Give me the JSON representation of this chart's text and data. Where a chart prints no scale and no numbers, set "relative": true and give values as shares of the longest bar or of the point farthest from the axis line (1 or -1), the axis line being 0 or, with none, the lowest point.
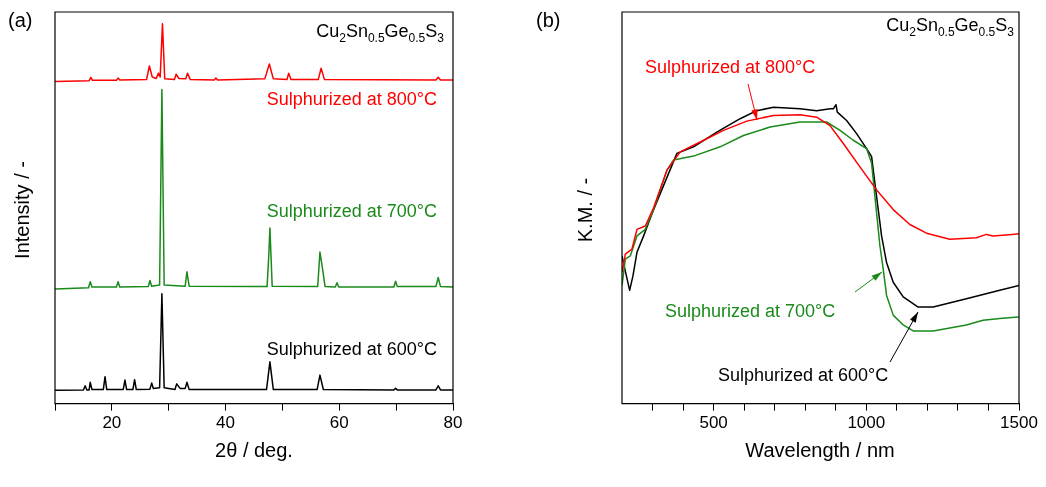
{
  "chart_data": [
    {
      "type": "line",
      "relative": true,
      "xlabel": "2θ / deg.",
      "ylabel": "Intensity / -",
      "xlim": [
        10,
        80
      ],
      "xticks": [
        {
          "value": 10,
          "label": null
        },
        20,
        {
          "value": 30,
          "label": null
        },
        40,
        {
          "value": 50,
          "label": null
        },
        60,
        {
          "value": 70,
          "label": null
        },
        80
      ],
      "tick_labels": "x",
      "grid": false,
      "legend": false,
      "annotations": [
        "(a)",
        "Cu$_{2}$Sn$_{0.5}$Ge$_{0.5}$S$_{3}$"
      ],
      "series": [
        {
          "name": "Sulphurized at 800°C",
          "color": "#ff0000",
          "x": [
            10,
            16.0,
            16.3,
            16.6,
            20.8,
            21.1,
            21.4,
            26.1,
            26.6,
            27.1,
            27.8,
            28.2,
            28.5,
            28.9,
            29.3,
            31.0,
            31.3,
            31.8,
            33.0,
            33.3,
            33.8,
            38.0,
            38.3,
            38.6,
            46.9,
            47.7,
            48.4,
            50.8,
            51.1,
            51.5,
            56.3,
            56.8,
            57.4,
            77.0,
            77.4,
            77.8,
            80
          ],
          "values": [
            0.848,
            0.85,
            0.859,
            0.851,
            0.851,
            0.857,
            0.852,
            0.853,
            0.889,
            0.86,
            0.856,
            0.87,
            0.86,
            1.0,
            0.855,
            0.853,
            0.867,
            0.856,
            0.855,
            0.87,
            0.853,
            0.852,
            0.857,
            0.852,
            0.855,
            0.894,
            0.855,
            0.853,
            0.87,
            0.853,
            0.853,
            0.883,
            0.853,
            0.852,
            0.859,
            0.852,
            0.852
          ]
        },
        {
          "name": "Sulphurized at 700°C",
          "color": "#1a8a1a",
          "x": [
            10,
            15.9,
            16.2,
            16.5,
            20.8,
            21.1,
            21.4,
            26.4,
            26.7,
            27.0,
            28.4,
            28.8,
            29.2,
            32.9,
            33.2,
            33.6,
            47.3,
            47.6,
            47.8,
            48.2,
            56.2,
            56.6,
            57.1,
            57.5,
            59.3,
            59.6,
            59.9,
            69.6,
            69.9,
            70.2,
            77.0,
            77.4,
            77.8,
            80
          ],
          "values": [
            0.302,
            0.305,
            0.321,
            0.307,
            0.307,
            0.321,
            0.307,
            0.308,
            0.324,
            0.309,
            0.312,
            0.827,
            0.312,
            0.309,
            0.347,
            0.309,
            0.308,
            0.39,
            0.462,
            0.309,
            0.308,
            0.399,
            0.35,
            0.308,
            0.307,
            0.318,
            0.307,
            0.307,
            0.322,
            0.308,
            0.308,
            0.332,
            0.308,
            0.307
          ]
        },
        {
          "name": "Sulphurized at 600°C",
          "color": "#000000",
          "x": [
            10,
            15.0,
            15.3,
            15.6,
            16.0,
            16.2,
            16.5,
            18.5,
            18.8,
            19.1,
            22.0,
            22.3,
            22.6,
            23.7,
            24.0,
            24.3,
            26.7,
            27.0,
            27.3,
            28.4,
            28.8,
            29.2,
            31.1,
            31.4,
            32.0,
            32.9,
            33.2,
            33.6,
            47.2,
            47.8,
            48.4,
            56.1,
            56.6,
            57.2,
            69.6,
            69.9,
            70.2,
            77.0,
            77.4,
            77.8,
            80
          ],
          "values": [
            0.035,
            0.036,
            0.047,
            0.036,
            0.036,
            0.056,
            0.037,
            0.037,
            0.071,
            0.037,
            0.037,
            0.062,
            0.037,
            0.037,
            0.063,
            0.037,
            0.038,
            0.054,
            0.04,
            0.042,
            0.289,
            0.042,
            0.037,
            0.052,
            0.04,
            0.04,
            0.056,
            0.037,
            0.037,
            0.11,
            0.037,
            0.037,
            0.075,
            0.037,
            0.036,
            0.04,
            0.036,
            0.036,
            0.047,
            0.036,
            0.036
          ]
        }
      ]
    },
    {
      "type": "line",
      "relative": true,
      "xlabel": "Wavelength / nm",
      "ylabel": "K.M. / -",
      "xlim": [
        200,
        1500
      ],
      "xticks": [
        {
          "value": 300,
          "label": null
        },
        {
          "value": 400,
          "label": null
        },
        500,
        {
          "value": 600,
          "label": null
        },
        {
          "value": 700,
          "label": null
        },
        {
          "value": 800,
          "label": null
        },
        {
          "value": 900,
          "label": null
        },
        1000,
        {
          "value": 1100,
          "label": null
        },
        {
          "value": 1200,
          "label": null
        },
        {
          "value": 1300,
          "label": null
        },
        {
          "value": 1400,
          "label": null
        },
        1500
      ],
      "tick_labels": "x",
      "grid": false,
      "legend": false,
      "annotations": [
        "(b)",
        "Cu$_{2}$Sn$_{0.5}$Ge$_{0.5}$S$_{3}$"
      ],
      "series": [
        {
          "name": "Sulphurized at 800°C",
          "color": "#ff0000",
          "x": [
            200,
            210.9,
            232.7,
            249.0,
            276.3,
            303.5,
            347.1,
            390.7,
            456.1,
            532.4,
            608.6,
            695.8,
            783.0,
            837.5,
            881.1,
            924.7,
            979.1,
            1033.6,
            1088.1,
            1142.6,
            1197.1,
            1273.4,
            1360.5,
            1393.2,
            1415.0,
            1500
          ],
          "values": [
            0.439,
            0.5,
            0.517,
            0.583,
            0.594,
            0.655,
            0.781,
            0.842,
            0.875,
            0.914,
            0.945,
            0.964,
            0.966,
            0.958,
            0.93,
            0.87,
            0.792,
            0.715,
            0.649,
            0.599,
            0.57,
            0.55,
            0.555,
            0.566,
            0.561,
            0.568
          ]
        },
        {
          "name": "Sulphurized at 700°C",
          "color": "#1a8a1a",
          "x": [
            200,
            210.9,
            227.2,
            249.0,
            276.3,
            303.5,
            347.1,
            368.9,
            434.3,
            521.5,
            597.7,
            684.9,
            783.0,
            870.2,
            913.8,
            957.3,
            1000.9,
            1017.3,
            1028.2,
            1044.5,
            1055.4,
            1066.3,
            1088.1,
            1120.8,
            1153.5,
            1218.9,
            1327.8,
            1382.3,
            1436.8,
            1500
          ],
          "values": [
            0.395,
            0.483,
            0.494,
            0.561,
            0.583,
            0.649,
            0.781,
            0.815,
            0.828,
            0.859,
            0.897,
            0.925,
            0.942,
            0.942,
            0.914,
            0.881,
            0.853,
            0.804,
            0.693,
            0.528,
            0.45,
            0.362,
            0.296,
            0.263,
            0.243,
            0.243,
            0.263,
            0.279,
            0.285,
            0.29
          ]
        },
        {
          "name": "Sulphurized at 600°C",
          "color": "#000000",
          "x": [
            200,
            214.2,
            225.1,
            236.0,
            249.0,
            270.8,
            303.5,
            379.8,
            434.3,
            510.6,
            586.8,
            641.3,
            695.8,
            783.0,
            837.5,
            881.1,
            892.0,
            900.7,
            905.0,
            935.5,
            968.2,
            1000.9,
            1017.3,
            1028.2,
            1039.1,
            1050.0,
            1066.3,
            1088.1,
            1120.8,
            1169.8,
            1218.9,
            1327.8,
            1436.8,
            1500
          ],
          "values": [
            0.494,
            0.428,
            0.379,
            0.428,
            0.506,
            0.561,
            0.649,
            0.837,
            0.859,
            0.908,
            0.953,
            0.98,
            0.991,
            0.986,
            0.98,
            0.986,
            0.986,
            1.0,
            0.975,
            0.947,
            0.903,
            0.853,
            0.826,
            0.737,
            0.649,
            0.561,
            0.472,
            0.406,
            0.357,
            0.323,
            0.323,
            0.351,
            0.379,
            0.395
          ]
        }
      ]
    }
  ]
}
